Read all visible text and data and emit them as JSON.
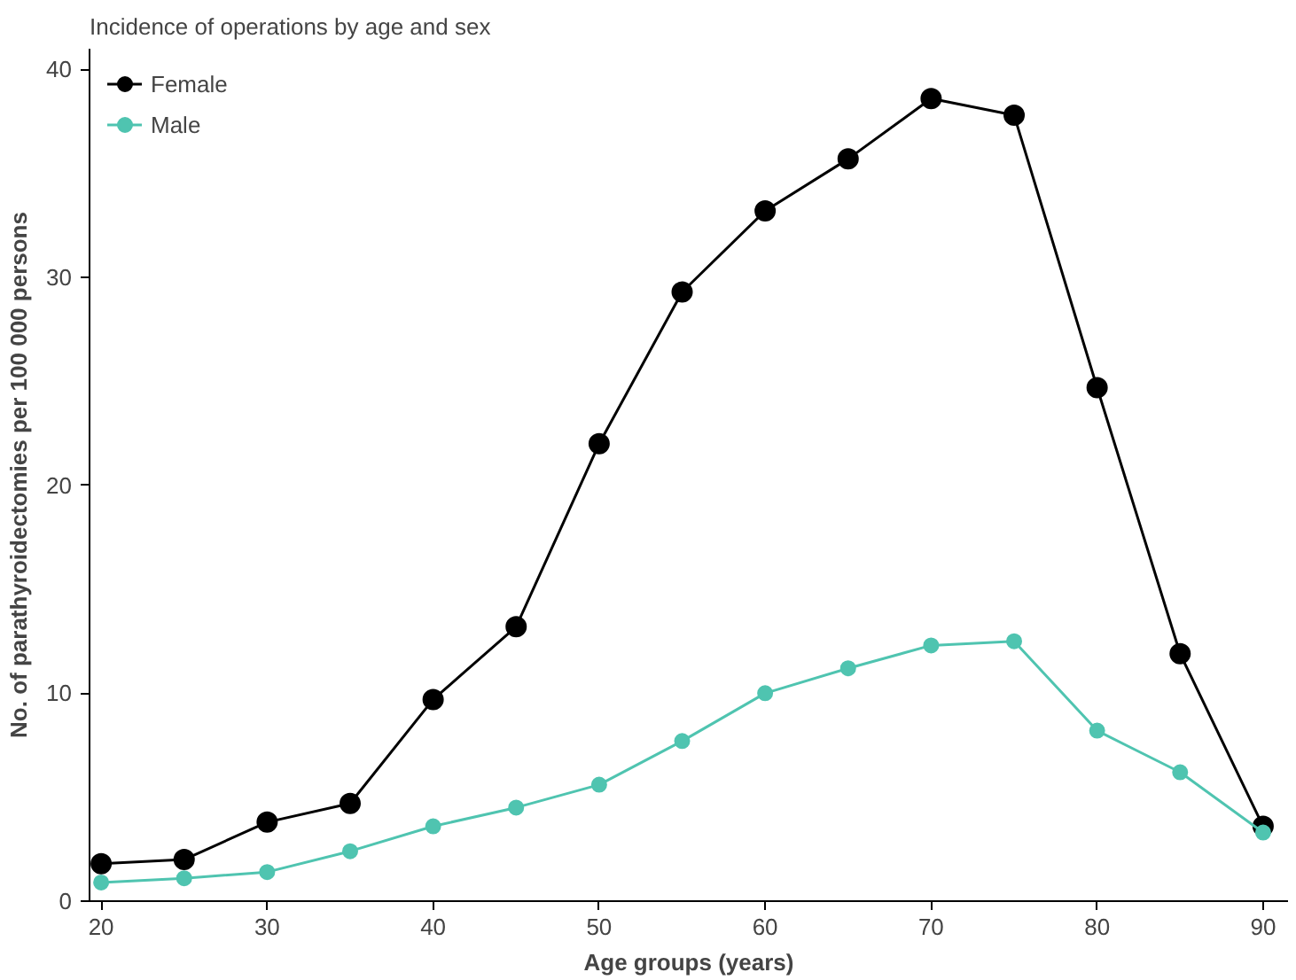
{
  "chart_data": {
    "type": "line",
    "title": "Incidence of operations by age and sex",
    "xlabel": "Age groups (years)",
    "ylabel": "No. of parathyroidectomies per 100 000 persons",
    "x": [
      20,
      25,
      30,
      35,
      40,
      45,
      50,
      55,
      60,
      65,
      70,
      75,
      80,
      85,
      90
    ],
    "series": [
      {
        "name": "Female",
        "color": "#000000",
        "values": [
          1.8,
          2.0,
          3.8,
          4.7,
          9.7,
          13.2,
          22.0,
          29.3,
          33.2,
          35.7,
          38.6,
          37.8,
          24.7,
          11.9,
          3.6
        ]
      },
      {
        "name": "Male",
        "color": "#4fc4b0",
        "values": [
          0.9,
          1.1,
          1.4,
          2.4,
          3.6,
          4.5,
          5.6,
          7.7,
          10.0,
          11.2,
          12.3,
          12.5,
          8.2,
          6.2,
          3.3
        ]
      }
    ],
    "xlim": [
      19.3,
      91.5
    ],
    "ylim": [
      0,
      41
    ],
    "xticks": [
      20,
      30,
      40,
      50,
      60,
      70,
      80,
      90
    ],
    "yticks": [
      0,
      10,
      20,
      30,
      40
    ],
    "grid": false,
    "legend": "top left",
    "marker": "circle",
    "line_style": "solid"
  }
}
